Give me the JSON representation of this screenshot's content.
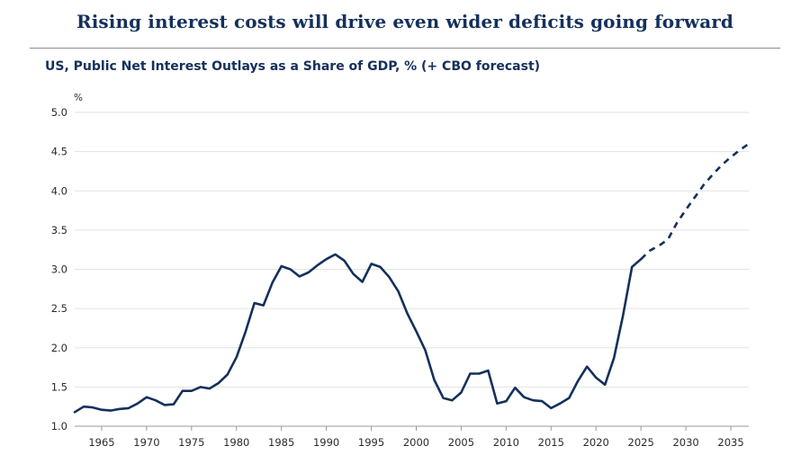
{
  "title": "Rising interest costs will drive even wider deficits going forward",
  "chart_data": {
    "type": "line",
    "title": "US, Public Net Interest Outlays as a Share of GDP, % (+ CBO forecast)",
    "ylabel": "%",
    "xlabel": "",
    "xlim": [
      1962,
      2037
    ],
    "ylim": [
      1.0,
      5.0
    ],
    "y_ticks": [
      "1.0",
      "1.5",
      "2.0",
      "2.5",
      "3.0",
      "3.5",
      "4.0",
      "4.5",
      "5.0"
    ],
    "x_ticks": [
      "1965",
      "1970",
      "1975",
      "1980",
      "1985",
      "1990",
      "1995",
      "2000",
      "2005",
      "2010",
      "2015",
      "2020",
      "2025",
      "2030",
      "2035"
    ],
    "grid": "horizontal",
    "line_color": "#14305c",
    "series": [
      {
        "style": "solid",
        "x": [
          1962,
          1963,
          1964,
          1965,
          1966,
          1967,
          1968,
          1969,
          1970,
          1971,
          1972,
          1973,
          1974,
          1975,
          1976,
          1977,
          1978,
          1979,
          1980,
          1981,
          1982,
          1983,
          1984,
          1985,
          1986,
          1987,
          1988,
          1989,
          1990,
          1991,
          1992,
          1993,
          1994,
          1995,
          1996,
          1997,
          1998,
          1999,
          2000,
          2001,
          2002,
          2003,
          2004,
          2005,
          2006,
          2007,
          2008,
          2009,
          2010,
          2011,
          2012,
          2013,
          2014,
          2015,
          2016,
          2017,
          2018,
          2019,
          2020,
          2021,
          2022,
          2023,
          2024,
          2025
        ],
        "y": [
          1.18,
          1.25,
          1.24,
          1.21,
          1.2,
          1.22,
          1.23,
          1.29,
          1.37,
          1.33,
          1.27,
          1.28,
          1.45,
          1.45,
          1.5,
          1.48,
          1.55,
          1.66,
          1.88,
          2.2,
          2.57,
          2.54,
          2.83,
          3.04,
          3.0,
          2.91,
          2.96,
          3.05,
          3.13,
          3.19,
          3.11,
          2.94,
          2.84,
          3.07,
          3.03,
          2.9,
          2.72,
          2.44,
          2.21,
          1.97,
          1.59,
          1.36,
          1.33,
          1.43,
          1.67,
          1.67,
          1.71,
          1.29,
          1.32,
          1.49,
          1.37,
          1.33,
          1.32,
          1.23,
          1.29,
          1.36,
          1.58,
          1.76,
          1.62,
          1.53,
          1.87,
          2.41,
          3.03,
          3.13
        ]
      },
      {
        "style": "dashed",
        "x": [
          2025,
          2026,
          2027,
          2028,
          2029,
          2030,
          2031,
          2032,
          2033,
          2034,
          2035,
          2036,
          2037
        ],
        "y": [
          3.13,
          3.24,
          3.3,
          3.38,
          3.59,
          3.76,
          3.92,
          4.08,
          4.21,
          4.33,
          4.43,
          4.52,
          4.6
        ]
      }
    ]
  }
}
